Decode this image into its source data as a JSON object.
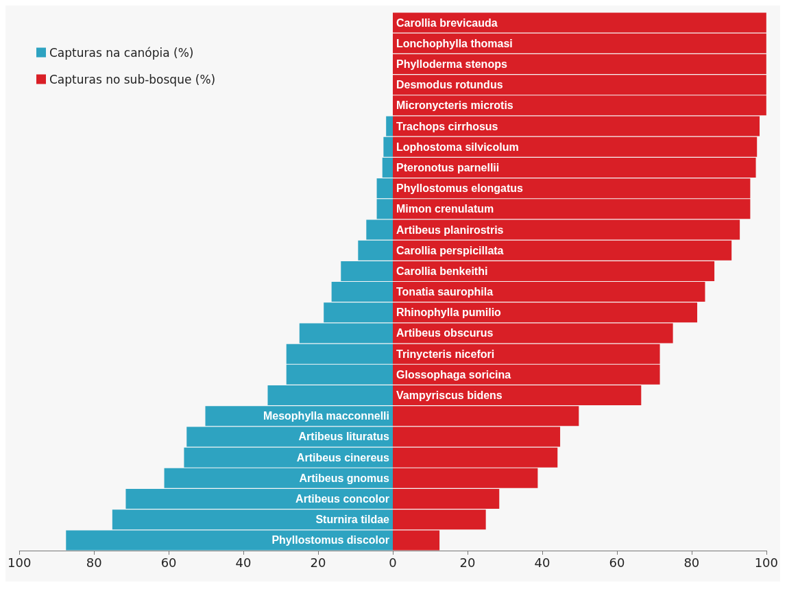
{
  "chart_data": {
    "type": "bar",
    "orientation": "horizontal",
    "categories": [
      "Carollia brevicauda",
      "Lonchophylla thomasi",
      "Phylloderma stenops",
      "Desmodus rotundus",
      "Micronycteris microtis",
      "Trachops cirrhosus",
      "Lophostoma silvicolum",
      "Pteronotus parnellii",
      "Phyllostomus elongatus",
      "Mimon crenulatum",
      "Artibeus planirostris",
      "Carollia perspicillata",
      "Carollia benkeithi",
      "Tonatia saurophila",
      "Rhinophylla pumilio",
      "Artibeus obscurus",
      "Trinycteris nicefori",
      "Glossophaga soricina",
      "Vampyriscus bidens",
      "Mesophylla macconnelli",
      "Artibeus lituratus",
      "Artibeus cinereus",
      "Artibeus gnomus",
      "Artibeus concolor",
      "Sturnira tildae",
      "Phyllostomus discolor"
    ],
    "series": [
      {
        "name": "Capturas na canópia (%)",
        "color": "#2ea3c1",
        "values": [
          0,
          0,
          0,
          0,
          0,
          -1.8,
          -2.5,
          -2.8,
          -4.3,
          -4.3,
          -7.1,
          -9.3,
          -13.9,
          -16.4,
          -18.5,
          -25,
          -28.5,
          -28.5,
          -33.5,
          -50.2,
          -55.2,
          -55.9,
          -61.2,
          -71.5,
          -75.1,
          -87.5
        ]
      },
      {
        "name": "Capturas no sub-bosque (%)",
        "color": "#d91f26",
        "values": [
          100,
          100,
          100,
          100,
          100,
          98.2,
          97.5,
          97.2,
          95.7,
          95.7,
          92.9,
          90.7,
          86.1,
          83.6,
          81.5,
          75,
          71.5,
          71.5,
          66.5,
          49.8,
          44.8,
          44.1,
          38.8,
          28.5,
          24.9,
          12.5
        ]
      }
    ],
    "xlim": [
      -100,
      100
    ],
    "xticks": [
      {
        "value": -100,
        "label": "100"
      },
      {
        "value": -80,
        "label": "80"
      },
      {
        "value": -60,
        "label": "60"
      },
      {
        "value": -40,
        "label": "40"
      },
      {
        "value": -20,
        "label": "20"
      },
      0,
      20,
      40,
      60,
      80,
      100
    ],
    "grid": false,
    "legend": "top left",
    "stacked": true
  }
}
